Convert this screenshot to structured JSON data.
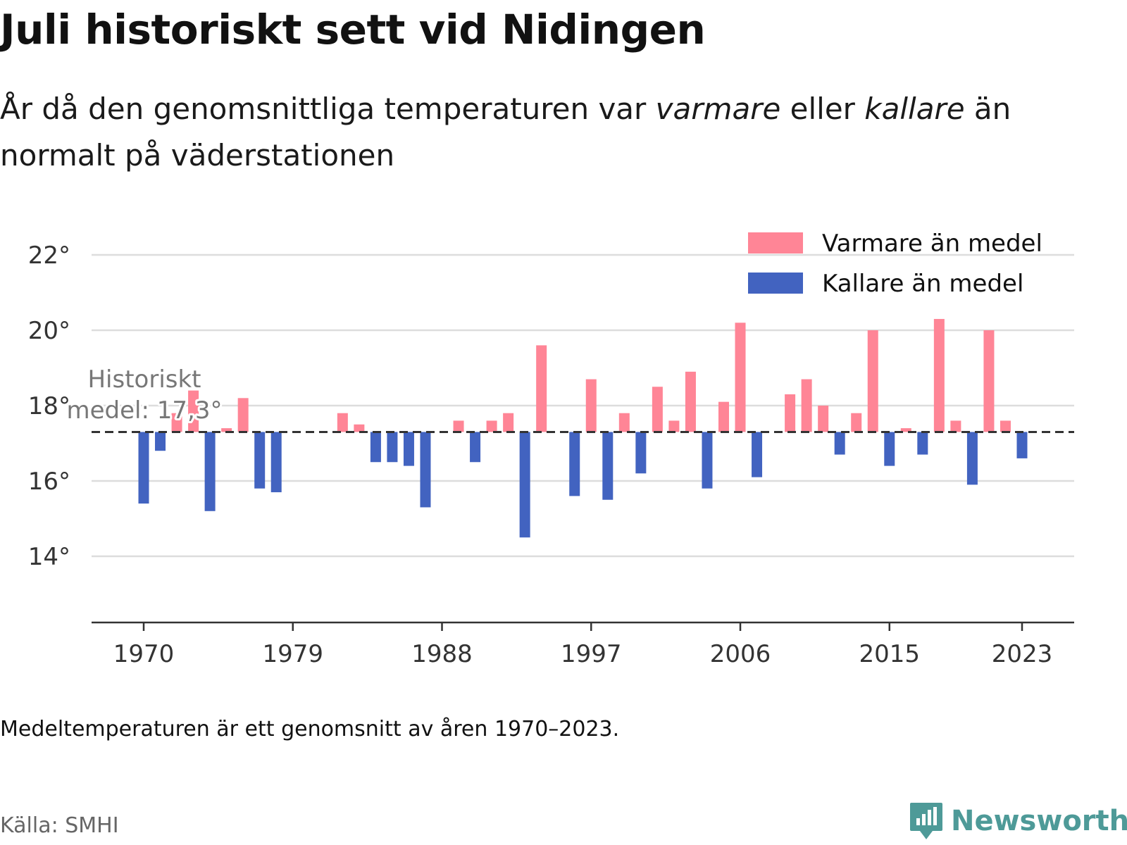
{
  "header": {
    "title": "Juli historiskt sett vid Nidingen",
    "subtitle_parts": [
      "År då den genomsnittliga temperaturen var ",
      "varmare",
      " eller ",
      "kallare",
      " än normalt på väderstationen"
    ]
  },
  "footer": {
    "note": "Medeltemperaturen är ett genomsnitt av åren 1970–2023.",
    "source": "Källa: SMHI",
    "brand": "Newsworthy",
    "brand_icon": "newsworthy-logo-icon"
  },
  "colors": {
    "warm": "#ff8596",
    "cold": "#4263c0",
    "grid": "#dddddd",
    "axis": "#333333",
    "mean_line": "#333333",
    "brand": "#4e9a98"
  },
  "chart_data": {
    "type": "bar",
    "baseline": 17.3,
    "baseline_label_lines": [
      "Historiskt",
      "medel: 17,3°"
    ],
    "ylim": [
      12.3,
      23.2
    ],
    "yticks": [
      14,
      16,
      18,
      20,
      22
    ],
    "ytick_labels": [
      "14°",
      "16°",
      "18°",
      "20°",
      "22°"
    ],
    "xticks": [
      1970,
      1979,
      1988,
      1997,
      2006,
      2015,
      2023
    ],
    "xtick_labels": [
      "1970",
      "1979",
      "1988",
      "1997",
      "2006",
      "2015",
      "2023"
    ],
    "legend": {
      "placement": "top-right",
      "entries": [
        {
          "label": "Varmare än medel",
          "color": "#ff8596"
        },
        {
          "label": "Kallare än medel",
          "color": "#4263c0"
        }
      ]
    },
    "series": [
      {
        "year": 1970,
        "value": 15.4
      },
      {
        "year": 1971,
        "value": 16.8
      },
      {
        "year": 1972,
        "value": 17.8
      },
      {
        "year": 1973,
        "value": 18.4
      },
      {
        "year": 1974,
        "value": 15.2
      },
      {
        "year": 1975,
        "value": 17.4
      },
      {
        "year": 1976,
        "value": 18.2
      },
      {
        "year": 1977,
        "value": 15.8
      },
      {
        "year": 1978,
        "value": 15.7
      },
      {
        "year": 1979,
        "value": null
      },
      {
        "year": 1980,
        "value": null
      },
      {
        "year": 1981,
        "value": null
      },
      {
        "year": 1982,
        "value": 17.8
      },
      {
        "year": 1983,
        "value": 17.5
      },
      {
        "year": 1984,
        "value": 16.5
      },
      {
        "year": 1985,
        "value": 16.5
      },
      {
        "year": 1986,
        "value": 16.4
      },
      {
        "year": 1987,
        "value": 15.3
      },
      {
        "year": 1988,
        "value": null
      },
      {
        "year": 1989,
        "value": 17.6
      },
      {
        "year": 1990,
        "value": 16.5
      },
      {
        "year": 1991,
        "value": 17.6
      },
      {
        "year": 1992,
        "value": 17.8
      },
      {
        "year": 1993,
        "value": 14.5
      },
      {
        "year": 1994,
        "value": 19.6
      },
      {
        "year": 1995,
        "value": null
      },
      {
        "year": 1996,
        "value": 15.6
      },
      {
        "year": 1997,
        "value": 18.7
      },
      {
        "year": 1998,
        "value": 15.5
      },
      {
        "year": 1999,
        "value": 17.8
      },
      {
        "year": 2000,
        "value": 16.2
      },
      {
        "year": 2001,
        "value": 18.5
      },
      {
        "year": 2002,
        "value": 17.6
      },
      {
        "year": 2003,
        "value": 18.9
      },
      {
        "year": 2004,
        "value": 15.8
      },
      {
        "year": 2005,
        "value": 18.1
      },
      {
        "year": 2006,
        "value": 20.2
      },
      {
        "year": 2007,
        "value": 16.1
      },
      {
        "year": 2008,
        "value": null
      },
      {
        "year": 2009,
        "value": 18.3
      },
      {
        "year": 2010,
        "value": 18.7
      },
      {
        "year": 2011,
        "value": 18.0
      },
      {
        "year": 2012,
        "value": 16.7
      },
      {
        "year": 2013,
        "value": 17.8
      },
      {
        "year": 2014,
        "value": 20.0
      },
      {
        "year": 2015,
        "value": 16.4
      },
      {
        "year": 2016,
        "value": 17.4
      },
      {
        "year": 2017,
        "value": 16.7
      },
      {
        "year": 2018,
        "value": 20.3
      },
      {
        "year": 2019,
        "value": 17.6
      },
      {
        "year": 2020,
        "value": 15.9
      },
      {
        "year": 2021,
        "value": 20.0
      },
      {
        "year": 2022,
        "value": 17.6
      },
      {
        "year": 2023,
        "value": 16.6
      }
    ]
  }
}
